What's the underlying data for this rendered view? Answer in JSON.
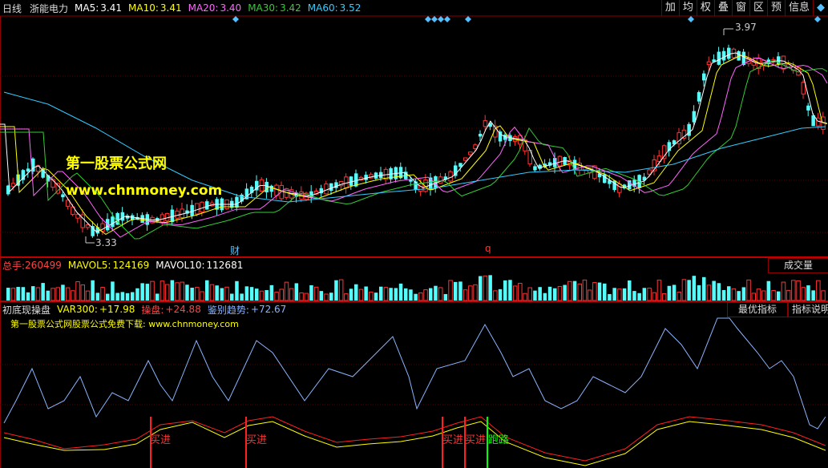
{
  "header": {
    "period": "日线",
    "stock": "浙能电力",
    "ma": [
      {
        "label": "MA5:",
        "value": "3.41",
        "color": "#ffffff"
      },
      {
        "label": "MA10:",
        "value": "3.41",
        "color": "#ffff00"
      },
      {
        "label": "MA20:",
        "value": "3.40",
        "color": "#ff66ff"
      },
      {
        "label": "MA30:",
        "value": "3.42",
        "color": "#33cc33"
      },
      {
        "label": "MA60:",
        "value": "3.52",
        "color": "#33ccff"
      }
    ],
    "buttons": [
      "加",
      "均",
      "权",
      "叠",
      "窗",
      "区",
      "预",
      "信息",
      "◆"
    ]
  },
  "price": {
    "high_label": "3.97",
    "low_label": "3.33",
    "event_cai": "财",
    "event_q": "q"
  },
  "watermark": {
    "line1": "第一股票公式网",
    "line2": "www.chnmoney.com"
  },
  "volume": {
    "total_label": "总手:",
    "total_value": "260499",
    "mavol5_label": "MAVOL5:",
    "mavol5_value": "124169",
    "mavol10_label": "MAVOL10:",
    "mavol10_value": "112681",
    "tab": "成交量"
  },
  "indicator": {
    "name": "初底现操盘",
    "var_label": "VAR300:",
    "var_value": "+17.98",
    "cao_label": "操盘:",
    "cao_value": "+24.88",
    "trend_label": "鉴别趋势:",
    "trend_value": "+72.67",
    "tab1": "最优指标",
    "tab2": "指标说明",
    "note": "第一股票公式网股票公式免费下载: www.chnmoney.com",
    "signals": [
      "买进",
      "买进",
      "买进",
      "买进",
      "跑路"
    ]
  },
  "colors": {
    "up": "#ff3333",
    "down": "#54fcfc",
    "frame": "#8b0000"
  }
}
